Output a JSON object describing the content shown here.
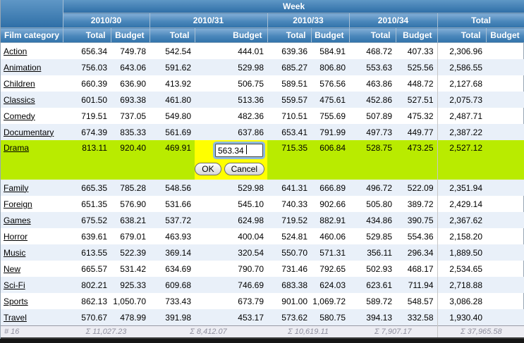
{
  "header": {
    "week_label": "Week",
    "row_header": "Film category",
    "groups": [
      {
        "label": "2010/30",
        "cols": [
          "Total",
          "Budget"
        ]
      },
      {
        "label": "2010/31",
        "cols": [
          "Total",
          "Budget"
        ]
      },
      {
        "label": "2010/33",
        "cols": [
          "Total",
          "Budget"
        ]
      },
      {
        "label": "2010/34",
        "cols": [
          "Total",
          "Budget"
        ]
      },
      {
        "label": "Total",
        "cols": [
          "Total",
          "Budget"
        ]
      }
    ]
  },
  "rows": [
    {
      "category": "Action",
      "values": [
        "656.34",
        "749.78",
        "542.54",
        "444.01",
        "639.36",
        "584.91",
        "468.72",
        "407.33"
      ],
      "total": "2,306.96"
    },
    {
      "category": "Animation",
      "values": [
        "756.03",
        "643.06",
        "591.62",
        "529.98",
        "685.27",
        "806.80",
        "553.63",
        "525.56"
      ],
      "total": "2,586.55"
    },
    {
      "category": "Children",
      "values": [
        "660.39",
        "636.90",
        "413.92",
        "506.75",
        "589.51",
        "576.56",
        "463.86",
        "448.72"
      ],
      "total": "2,127.68"
    },
    {
      "category": "Classics",
      "values": [
        "601.50",
        "693.38",
        "461.80",
        "513.36",
        "559.57",
        "475.61",
        "452.86",
        "527.51"
      ],
      "total": "2,075.73"
    },
    {
      "category": "Comedy",
      "values": [
        "719.51",
        "737.05",
        "549.80",
        "482.36",
        "710.51",
        "755.69",
        "507.89",
        "475.32"
      ],
      "total": "2,487.71"
    },
    {
      "category": "Documentary",
      "values": [
        "674.39",
        "835.33",
        "561.69",
        "637.86",
        "653.41",
        "791.99",
        "497.73",
        "449.77"
      ],
      "total": "2,387.22"
    },
    {
      "category": "Drama",
      "values": [
        "813.11",
        "920.40",
        "469.91",
        null,
        "715.35",
        "606.84",
        "528.75",
        "473.25"
      ],
      "total": "2,527.12",
      "editing": true
    },
    {
      "category": "Family",
      "values": [
        "665.35",
        "785.28",
        "548.56",
        "529.98",
        "641.31",
        "666.89",
        "496.72",
        "522.09"
      ],
      "total": "2,351.94"
    },
    {
      "category": "Foreign",
      "values": [
        "651.35",
        "576.90",
        "531.66",
        "545.10",
        "740.33",
        "902.66",
        "505.80",
        "389.72"
      ],
      "total": "2,429.14"
    },
    {
      "category": "Games",
      "values": [
        "675.52",
        "638.21",
        "537.72",
        "624.98",
        "719.52",
        "882.91",
        "434.86",
        "390.75"
      ],
      "total": "2,367.62"
    },
    {
      "category": "Horror",
      "values": [
        "639.61",
        "679.01",
        "463.93",
        "400.04",
        "524.81",
        "460.06",
        "529.85",
        "554.36"
      ],
      "total": "2,158.20"
    },
    {
      "category": "Music",
      "values": [
        "613.55",
        "522.39",
        "369.14",
        "320.54",
        "550.70",
        "571.31",
        "356.11",
        "296.34"
      ],
      "total": "1,889.50"
    },
    {
      "category": "New",
      "values": [
        "665.57",
        "531.42",
        "634.69",
        "790.70",
        "731.46",
        "792.65",
        "502.93",
        "468.17"
      ],
      "total": "2,534.65"
    },
    {
      "category": "Sci-Fi",
      "values": [
        "802.21",
        "925.33",
        "609.68",
        "746.69",
        "683.38",
        "624.03",
        "623.61",
        "711.94"
      ],
      "total": "2,718.88"
    },
    {
      "category": "Sports",
      "values": [
        "862.13",
        "1,050.70",
        "733.43",
        "673.79",
        "901.00",
        "1,069.72",
        "589.72",
        "548.57"
      ],
      "total": "3,086.28"
    },
    {
      "category": "Travel",
      "values": [
        "570.67",
        "478.99",
        "391.98",
        "453.17",
        "573.62",
        "580.75",
        "394.13",
        "332.58"
      ],
      "total": "1,930.40"
    }
  ],
  "editor": {
    "value": "563.34",
    "ok_label": "OK",
    "cancel_label": "Cancel"
  },
  "footer": {
    "count": "# 16",
    "sums": [
      "Σ 11,027.23",
      "Σ 8,412.07",
      "Σ 10,619.11",
      "Σ 7,907.17",
      "Σ 37,965.58"
    ]
  },
  "colors": {
    "header_blue_top": "#83AFD7",
    "header_blue_bottom": "#3172A9",
    "stripe": "#E9F0F9",
    "selected_row": "#B9EB00",
    "edit_cell": "#FFFF00",
    "footer_bg": "#EDEDF3",
    "footer_text": "#8F8F9E"
  }
}
